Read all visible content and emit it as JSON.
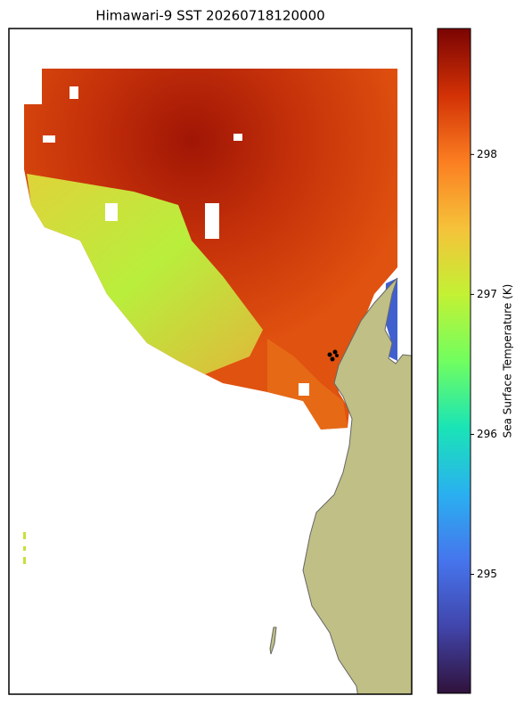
{
  "title": "Himawari-9 SST 20260718120000",
  "colorbar": {
    "label": "Sea Surface Temperature (K)",
    "lim": [
      294.15,
      298.9
    ],
    "ticks": [
      295,
      296,
      297,
      298
    ]
  }
}
